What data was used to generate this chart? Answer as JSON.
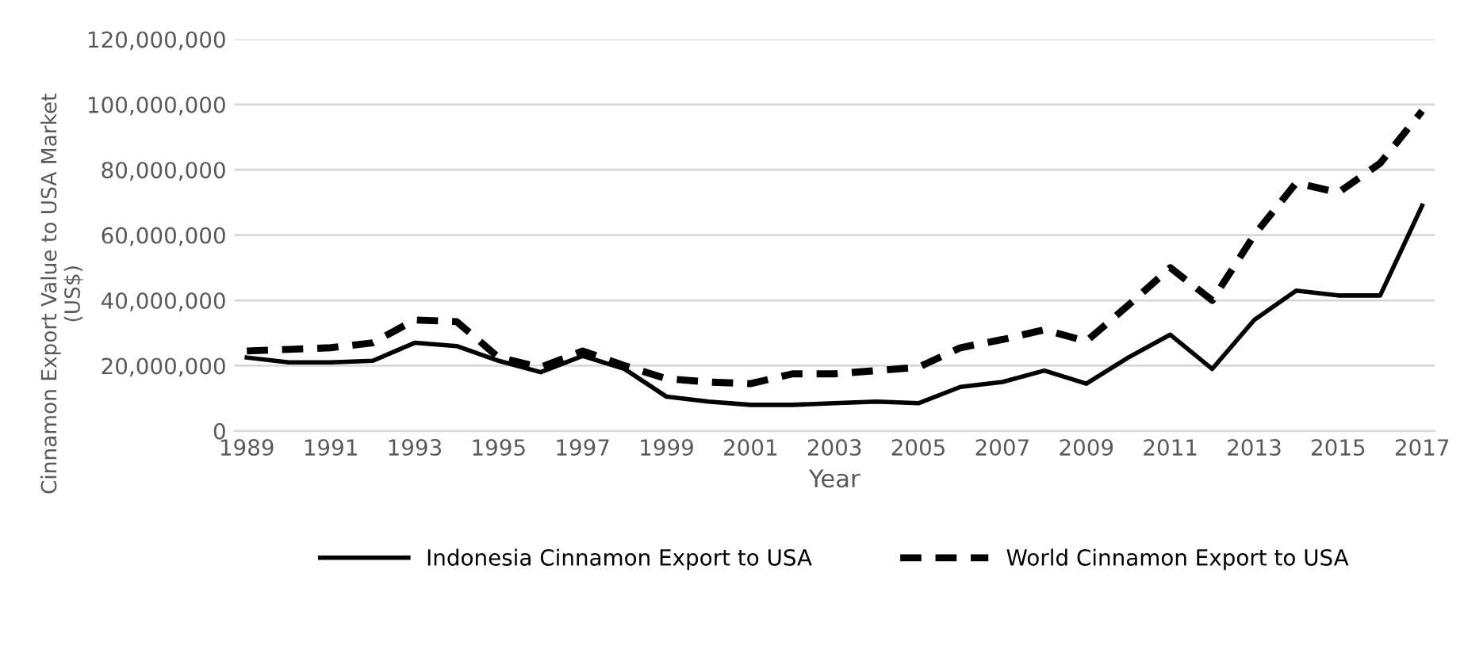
{
  "chart_data": {
    "type": "line",
    "xlabel": "Year",
    "ylabel": "Cinnamon Export Value to USA Market\n(US$)",
    "categories": [
      "1989",
      null,
      "1991",
      null,
      "1993",
      null,
      "1995",
      null,
      "1997",
      null,
      "1999",
      null,
      "2001",
      null,
      "2003",
      null,
      "2005",
      null,
      "2007",
      null,
      "2009",
      null,
      "2011",
      null,
      "2013",
      null,
      "2015",
      null,
      "2017"
    ],
    "series": [
      {
        "name": "Indonesia Cinnamon Export to USA",
        "color": "#000000",
        "line_style": "solid",
        "values": [
          22500000,
          21000000,
          21000000,
          21500000,
          27000000,
          26000000,
          21500000,
          18000000,
          23000000,
          19000000,
          10500000,
          9000000,
          8000000,
          8000000,
          8500000,
          9000000,
          8500000,
          13500000,
          15000000,
          18500000,
          14500000,
          22500000,
          29500000,
          19000000,
          34000000,
          43000000,
          41500000,
          41500000,
          69000000
        ]
      },
      {
        "name": "World Cinnamon Export to USA",
        "color": "#000000",
        "line_style": "dashed",
        "values": [
          24500000,
          25000000,
          25500000,
          27000000,
          34000000,
          33500000,
          22500000,
          19500000,
          24500000,
          20000000,
          16000000,
          15000000,
          14500000,
          17500000,
          17500000,
          18500000,
          19500000,
          25500000,
          28000000,
          31000000,
          27500000,
          38500000,
          50000000,
          40000000,
          60000000,
          76000000,
          73000000,
          82000000,
          98000000
        ]
      }
    ],
    "ylim": [
      0,
      120000000
    ],
    "yticks": [
      {
        "value": 0,
        "label": "0"
      },
      {
        "value": 20000000,
        "label": "20,000,000"
      },
      {
        "value": 40000000,
        "label": "40,000,000"
      },
      {
        "value": 60000000,
        "label": "60,000,000"
      },
      {
        "value": 80000000,
        "label": "80,000,000"
      },
      {
        "value": 100000000,
        "label": "100,000,000"
      },
      {
        "value": 120000000,
        "label": "120,000,000"
      }
    ],
    "grid": "y",
    "legend": "bottom",
    "marker": "none"
  }
}
